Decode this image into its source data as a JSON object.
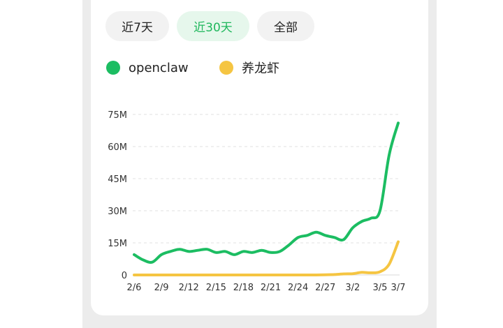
{
  "tabs": [
    {
      "label": "近7天",
      "active": false
    },
    {
      "label": "近30天",
      "active": true
    },
    {
      "label": "全部",
      "active": false
    }
  ],
  "colors": {
    "accent": "#1fb75c",
    "openclaw": "#1cbd62",
    "yanglongxia": "#f5c542"
  },
  "chart_data": {
    "type": "line",
    "x": [
      "2/6",
      "2/7",
      "2/8",
      "2/9",
      "2/10",
      "2/11",
      "2/12",
      "2/13",
      "2/14",
      "2/15",
      "2/16",
      "2/17",
      "2/18",
      "2/19",
      "2/20",
      "2/21",
      "2/22",
      "2/23",
      "2/24",
      "2/25",
      "2/26",
      "2/27",
      "2/28",
      "3/1",
      "3/2",
      "3/3",
      "3/4",
      "3/5",
      "3/6",
      "3/7"
    ],
    "x_tick_labels": [
      "2/6",
      "2/9",
      "2/12",
      "2/15",
      "2/18",
      "2/21",
      "2/24",
      "2/27",
      "3/2",
      "3/5",
      "3/7"
    ],
    "y_tick_labels": [
      "0",
      "15M",
      "30M",
      "45M",
      "60M",
      "75M"
    ],
    "ylim": [
      0,
      75000000
    ],
    "grid": "horizontal dashed",
    "legend_position": "top-left",
    "series": [
      {
        "name": "openclaw",
        "color": "#1cbd62",
        "values": [
          9500000,
          7000000,
          6000000,
          9500000,
          11000000,
          12000000,
          11000000,
          11500000,
          12000000,
          10500000,
          11000000,
          9500000,
          11000000,
          10500000,
          11500000,
          10500000,
          11000000,
          14000000,
          17500000,
          18500000,
          20000000,
          18500000,
          17500000,
          16500000,
          22000000,
          25000000,
          26500000,
          30000000,
          56000000,
          71000000
        ]
      },
      {
        "name": "养龙虾",
        "color": "#f5c542",
        "values": [
          0,
          0,
          0,
          0,
          0,
          0,
          0,
          0,
          0,
          0,
          0,
          0,
          0,
          0,
          0,
          0,
          0,
          0,
          0,
          0,
          0,
          100000,
          200000,
          500000,
          600000,
          1200000,
          1000000,
          1500000,
          5000000,
          15500000
        ]
      }
    ]
  }
}
